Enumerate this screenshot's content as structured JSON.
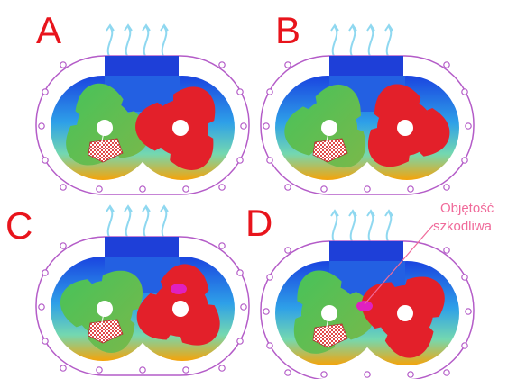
{
  "panels": [
    {
      "label": "A"
    },
    {
      "label": "B"
    },
    {
      "label": "C"
    },
    {
      "label": "D"
    }
  ],
  "callout": {
    "line1": "Objętość",
    "line2": "szkodliwa"
  },
  "colors": {
    "label": "#e8141c",
    "casing_outline": "#b45cc8",
    "left_rotor": "#5cb85c",
    "right_rotor": "#e3202a",
    "discharge": "#1e3fd8",
    "suction": "#f5a30a",
    "dead_volume": "#e020c0",
    "callout_text": "#f06a9a"
  },
  "icons": {
    "airflow": "wavy-arrow-icon",
    "bolt": "bolt-hole-icon"
  }
}
